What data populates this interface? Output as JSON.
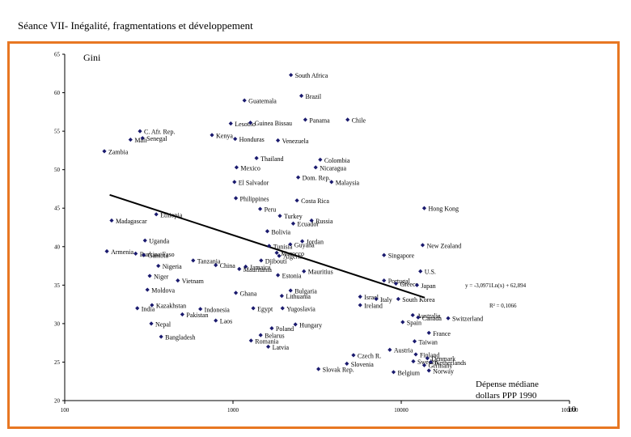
{
  "slide": {
    "title": "Séance VII- Inégalité, fragmentations et développement",
    "page_number": "10"
  },
  "colors": {
    "frame": "#e87722",
    "marker": "#1a1a6e"
  },
  "chart_data": {
    "type": "scatter",
    "title": "",
    "ylabel": "Gini",
    "xlabel": "Dépense médiane dollars PPP 1990",
    "xlabel_lines": [
      "Dépense médiane",
      "dollars PPP 1990"
    ],
    "x_scale": "log",
    "xlim": [
      100,
      100000
    ],
    "ylim": [
      20,
      65
    ],
    "x_ticks": [
      "100",
      "1000",
      "10000",
      "100000"
    ],
    "y_ticks": [
      "20",
      "25",
      "30",
      "35",
      "40",
      "45",
      "50",
      "55",
      "60",
      "65"
    ],
    "regression": {
      "equation": "y = -3,0971Ln(x) + 62,894",
      "r2": "R² = 0,1066",
      "a": -3.0971,
      "b": 62.894
    },
    "points": [
      {
        "label": "South Africa",
        "x": 2210,
        "y": 62.3
      },
      {
        "label": "Brazil",
        "x": 2550,
        "y": 59.6
      },
      {
        "label": "Guatemala",
        "x": 1170,
        "y": 59.0
      },
      {
        "label": "Panama",
        "x": 2690,
        "y": 56.5
      },
      {
        "label": "Chile",
        "x": 4800,
        "y": 56.5
      },
      {
        "label": "Lesotho",
        "x": 970,
        "y": 56.0
      },
      {
        "label": "Guinea Bissau",
        "x": 1270,
        "y": 56.1
      },
      {
        "label": "C. Afr. Rep.",
        "x": 280,
        "y": 55.0
      },
      {
        "label": "Kenya",
        "x": 750,
        "y": 54.5
      },
      {
        "label": "Senegal",
        "x": 290,
        "y": 54.1
      },
      {
        "label": "Honduras",
        "x": 1030,
        "y": 54.0
      },
      {
        "label": "Venezuela",
        "x": 1850,
        "y": 53.8
      },
      {
        "label": "Mali",
        "x": 246,
        "y": 53.9
      },
      {
        "label": "Zambia",
        "x": 172,
        "y": 52.4
      },
      {
        "label": "Thailand",
        "x": 1380,
        "y": 51.5
      },
      {
        "label": "Colombia",
        "x": 3300,
        "y": 51.3
      },
      {
        "label": "Mexico",
        "x": 1050,
        "y": 50.3
      },
      {
        "label": "Nicaragua",
        "x": 3100,
        "y": 50.3
      },
      {
        "label": "Dom. Rep.",
        "x": 2440,
        "y": 49.0
      },
      {
        "label": "Malaysia",
        "x": 3850,
        "y": 48.4
      },
      {
        "label": "El Salvador",
        "x": 1020,
        "y": 48.4
      },
      {
        "label": "Philippines",
        "x": 1040,
        "y": 46.3
      },
      {
        "label": "Costa Rica",
        "x": 2400,
        "y": 46.0
      },
      {
        "label": "Hong Kong",
        "x": 13700,
        "y": 45.0
      },
      {
        "label": "Peru",
        "x": 1450,
        "y": 44.9
      },
      {
        "label": "Ethiopia",
        "x": 350,
        "y": 44.2
      },
      {
        "label": "Turkey",
        "x": 1900,
        "y": 44.0
      },
      {
        "label": "Madagascar",
        "x": 190,
        "y": 43.4
      },
      {
        "label": "Russia",
        "x": 2930,
        "y": 43.4
      },
      {
        "label": "Ecuador",
        "x": 2280,
        "y": 43.0
      },
      {
        "label": "Bolivia",
        "x": 1600,
        "y": 42.0
      },
      {
        "label": "Uganda",
        "x": 300,
        "y": 40.8
      },
      {
        "label": "Jordan",
        "x": 2580,
        "y": 40.7
      },
      {
        "label": "Tunisia",
        "x": 1640,
        "y": 40.1
      },
      {
        "label": "Guyana",
        "x": 2190,
        "y": 40.3
      },
      {
        "label": "New Zealand",
        "x": 13400,
        "y": 40.2
      },
      {
        "label": "Burkina Faso",
        "x": 264,
        "y": 39.1
      },
      {
        "label": "Morocco",
        "x": 1820,
        "y": 39.2
      },
      {
        "label": "Armenia",
        "x": 178,
        "y": 39.4
      },
      {
        "label": "Gambia",
        "x": 295,
        "y": 38.9
      },
      {
        "label": "Singapore",
        "x": 7900,
        "y": 38.9
      },
      {
        "label": "Algeria",
        "x": 1880,
        "y": 38.8
      },
      {
        "label": "Tanzania",
        "x": 580,
        "y": 38.2
      },
      {
        "label": "Djibouti",
        "x": 1470,
        "y": 38.2
      },
      {
        "label": "Nigeria",
        "x": 360,
        "y": 37.5
      },
      {
        "label": "China",
        "x": 790,
        "y": 37.6
      },
      {
        "label": "Jamaica",
        "x": 1190,
        "y": 37.4
      },
      {
        "label": "Mauritania",
        "x": 1090,
        "y": 37.1
      },
      {
        "label": "Mauritius",
        "x": 2640,
        "y": 36.8
      },
      {
        "label": "U.S.",
        "x": 13000,
        "y": 36.8
      },
      {
        "label": "Niger",
        "x": 320,
        "y": 36.2
      },
      {
        "label": "Estonia",
        "x": 1850,
        "y": 36.3
      },
      {
        "label": "Portugal",
        "x": 7900,
        "y": 35.6
      },
      {
        "label": "Vietnam",
        "x": 470,
        "y": 35.6
      },
      {
        "label": "Greece",
        "x": 9300,
        "y": 35.2
      },
      {
        "label": "Japan",
        "x": 12400,
        "y": 35.0
      },
      {
        "label": "Moldova",
        "x": 310,
        "y": 34.4
      },
      {
        "label": "Bulgaria",
        "x": 2200,
        "y": 34.3
      },
      {
        "label": "Ghana",
        "x": 1040,
        "y": 34.0
      },
      {
        "label": "Lithuania",
        "x": 1950,
        "y": 33.6
      },
      {
        "label": "Israel",
        "x": 5700,
        "y": 33.5
      },
      {
        "label": "Italy",
        "x": 7100,
        "y": 33.2
      },
      {
        "label": "South Korea",
        "x": 9600,
        "y": 33.2
      },
      {
        "label": "Kazakhstan",
        "x": 330,
        "y": 32.4
      },
      {
        "label": "Ireland",
        "x": 5700,
        "y": 32.4
      },
      {
        "label": "India",
        "x": 270,
        "y": 32.0
      },
      {
        "label": "Indonesia",
        "x": 640,
        "y": 31.9
      },
      {
        "label": "Egypt",
        "x": 1320,
        "y": 32.0
      },
      {
        "label": "Yugoslavia",
        "x": 1970,
        "y": 32.0
      },
      {
        "label": "Pakistan",
        "x": 500,
        "y": 31.2
      },
      {
        "label": "Australia",
        "x": 11700,
        "y": 31.1
      },
      {
        "label": "Canada",
        "x": 12600,
        "y": 30.8
      },
      {
        "label": "Switzerland",
        "x": 19000,
        "y": 30.7
      },
      {
        "label": "Laos",
        "x": 790,
        "y": 30.4
      },
      {
        "label": "Spain",
        "x": 10200,
        "y": 30.2
      },
      {
        "label": "Nepal",
        "x": 327,
        "y": 30.0
      },
      {
        "label": "Hungary",
        "x": 2350,
        "y": 29.9
      },
      {
        "label": "Poland",
        "x": 1700,
        "y": 29.4
      },
      {
        "label": "France",
        "x": 14600,
        "y": 28.8
      },
      {
        "label": "Belarus",
        "x": 1460,
        "y": 28.5
      },
      {
        "label": "Bangladesh",
        "x": 374,
        "y": 28.3
      },
      {
        "label": "Taiwan",
        "x": 12000,
        "y": 27.7
      },
      {
        "label": "Romania",
        "x": 1280,
        "y": 27.8
      },
      {
        "label": "Latvia",
        "x": 1620,
        "y": 27.0
      },
      {
        "label": "Austria",
        "x": 8550,
        "y": 26.6
      },
      {
        "label": "Finland",
        "x": 12200,
        "y": 26.0
      },
      {
        "label": "Czech R.",
        "x": 5200,
        "y": 25.9
      },
      {
        "label": "Denmark",
        "x": 14300,
        "y": 25.5
      },
      {
        "label": "Sweden",
        "x": 11800,
        "y": 25.1
      },
      {
        "label": "Netherlands",
        "x": 15000,
        "y": 25.0
      },
      {
        "label": "Slovenia",
        "x": 4750,
        "y": 24.8
      },
      {
        "label": "Germany",
        "x": 13700,
        "y": 24.6
      },
      {
        "label": "Slovak Rep.",
        "x": 3220,
        "y": 24.1
      },
      {
        "label": "Belgium",
        "x": 9000,
        "y": 23.7
      },
      {
        "label": "Norway",
        "x": 14600,
        "y": 23.9
      }
    ]
  }
}
